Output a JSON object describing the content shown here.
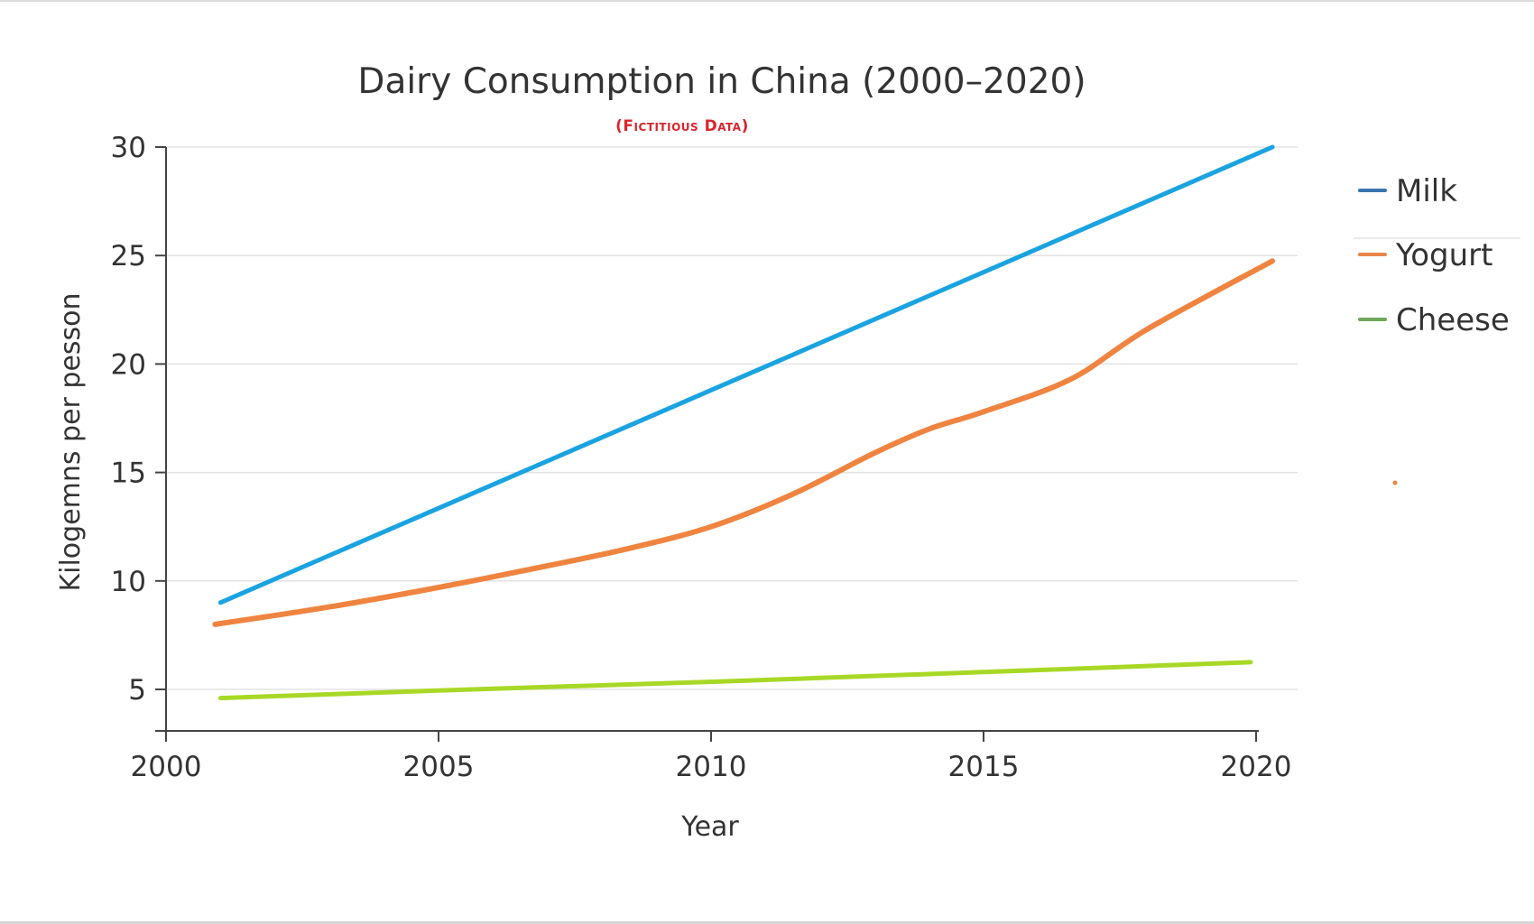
{
  "chart_data": {
    "type": "line",
    "title": "Dairy Consumption in China (2000–2020)",
    "subtitle": "(Fictitious Data)",
    "xlabel": "Year",
    "ylabel": "Kilogemns per pesson",
    "xlim": [
      2000,
      2020
    ],
    "ylim": [
      3,
      30
    ],
    "x_ticks": [
      2000,
      2005,
      2010,
      2015,
      2020
    ],
    "y_ticks": [
      5,
      10,
      15,
      20,
      25,
      30
    ],
    "grid": "horizontal",
    "legend_position": "right",
    "series": [
      {
        "name": "Milk",
        "color": "#1aa3e0",
        "legend_color": "#3a74b0",
        "x": [
          2001,
          2020.3
        ],
        "y": [
          9.0,
          30.0
        ]
      },
      {
        "name": "Yogurt",
        "color": "#ef8440",
        "legend_color": "#e8864a",
        "x": [
          2000.9,
          2003,
          2005,
          2007,
          2008.5,
          2010,
          2011.5,
          2013,
          2014,
          2015,
          2016.6,
          2018,
          2020.3
        ],
        "y": [
          8.0,
          8.8,
          9.7,
          10.7,
          11.5,
          12.5,
          14.0,
          15.9,
          17.0,
          17.8,
          19.3,
          21.6,
          24.75
        ]
      },
      {
        "name": "Cheese",
        "color": "#a8d826",
        "legend_color": "#70a85a",
        "x": [
          2001,
          2005,
          2010,
          2015,
          2019.9
        ],
        "y": [
          4.6,
          4.95,
          5.35,
          5.8,
          6.25
        ]
      }
    ]
  }
}
